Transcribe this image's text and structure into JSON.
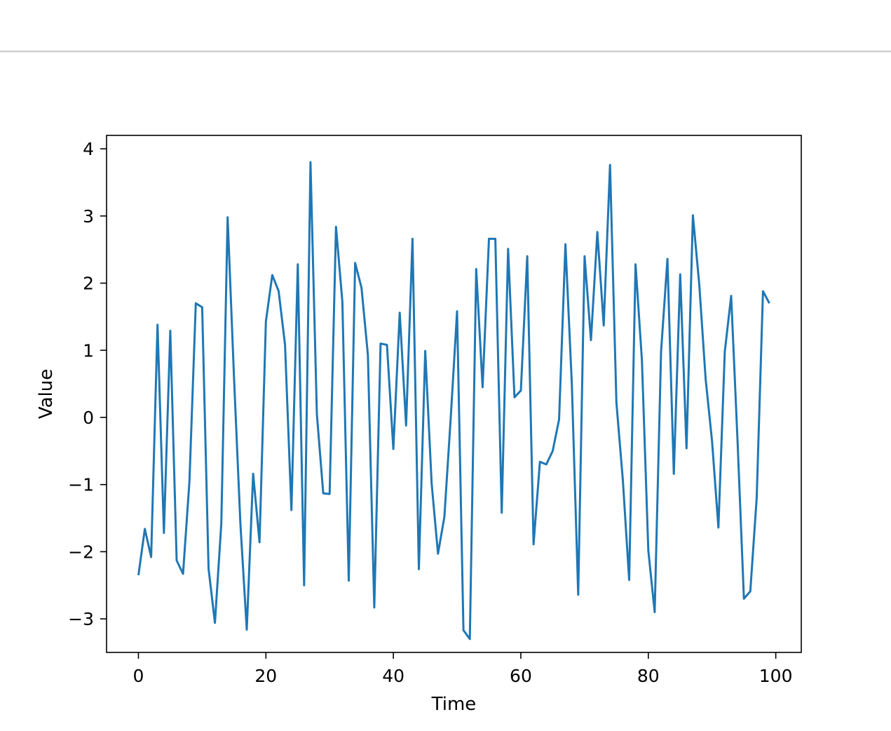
{
  "chart_data": {
    "type": "line",
    "title": "",
    "xlabel": "Time",
    "ylabel": "Value",
    "xlim": [
      -5,
      104
    ],
    "ylim": [
      -3.5,
      4.2
    ],
    "x_ticks": [
      0,
      20,
      40,
      60,
      80,
      100
    ],
    "y_ticks": [
      -3,
      -2,
      -1,
      0,
      1,
      2,
      3,
      4
    ],
    "x_tick_labels": [
      "0",
      "20",
      "40",
      "60",
      "80",
      "100"
    ],
    "y_tick_labels": [
      "−3",
      "−2",
      "−1",
      "0",
      "1",
      "2",
      "3",
      "4"
    ],
    "grid": false,
    "line_color": "#1f77b4",
    "series": [
      {
        "x": [
          0,
          1,
          2,
          3,
          4,
          5,
          6,
          7,
          8,
          9,
          10,
          11,
          12,
          13,
          14,
          15,
          16,
          17,
          18,
          19,
          20,
          21,
          22,
          23,
          24,
          25,
          26,
          27,
          28,
          29,
          30,
          31,
          32,
          33,
          34,
          35,
          36,
          37,
          38,
          39,
          40,
          41,
          42,
          43,
          44,
          45,
          46,
          47,
          48,
          49,
          50,
          51,
          52,
          53,
          54,
          55,
          56,
          57,
          58,
          59,
          60,
          61,
          62,
          63,
          64,
          65,
          66,
          67,
          68,
          69,
          70,
          71,
          72,
          73,
          74,
          75,
          76,
          77,
          78,
          79,
          80,
          81,
          82,
          83,
          84,
          85,
          86,
          87,
          88,
          89,
          90,
          91,
          92,
          93,
          94,
          95,
          96,
          97,
          98,
          99
        ],
        "values": [
          -2.35,
          -1.66,
          -2.08,
          1.38,
          -1.72,
          1.29,
          -2.13,
          -2.33,
          -0.96,
          1.7,
          1.64,
          -2.25,
          -3.06,
          -1.58,
          2.98,
          0.6,
          -1.58,
          -3.16,
          -0.84,
          -1.86,
          1.43,
          2.12,
          1.88,
          1.08,
          -1.38,
          2.28,
          -2.5,
          3.8,
          0.05,
          -1.13,
          -1.14,
          2.84,
          1.72,
          -2.43,
          2.3,
          1.93,
          0.93,
          -2.83,
          1.1,
          1.08,
          -0.47,
          1.56,
          -0.12,
          2.66,
          -2.26,
          0.99,
          -0.98,
          -2.03,
          -1.48,
          0.0,
          1.58,
          -3.17,
          -3.3,
          2.21,
          0.45,
          2.66,
          2.66,
          -1.42,
          2.51,
          0.3,
          0.4,
          2.4,
          -1.89,
          -0.66,
          -0.7,
          -0.5,
          -0.03,
          2.58,
          0.5,
          -2.64,
          2.4,
          1.15,
          2.76,
          1.37,
          3.76,
          0.22,
          -0.92,
          -2.42,
          2.28,
          0.85,
          -1.98,
          -2.9,
          0.98,
          2.36,
          -0.84,
          2.13,
          -0.46,
          3.01,
          1.98,
          0.57,
          -0.35,
          -1.64,
          0.98,
          1.81,
          -0.35,
          -2.7,
          -2.59,
          -1.2,
          1.88,
          1.7
        ]
      }
    ]
  }
}
